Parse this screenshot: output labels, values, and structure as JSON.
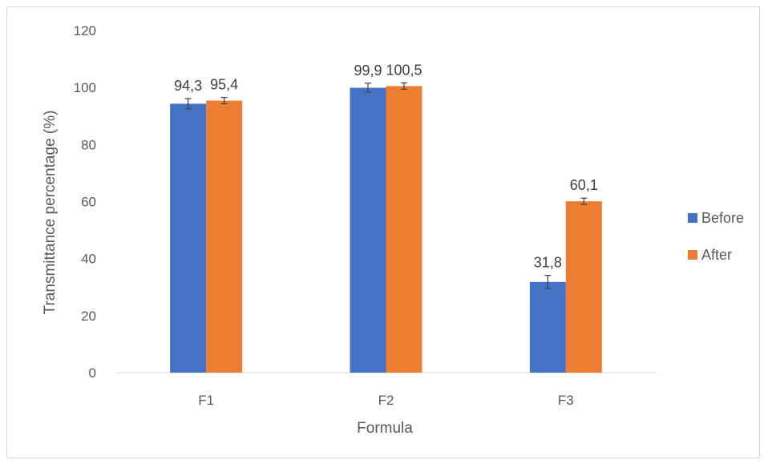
{
  "chart_data": {
    "type": "bar",
    "categories": [
      "F1",
      "F2",
      "F3"
    ],
    "series": [
      {
        "name": "Before",
        "color": "#4472C4",
        "values": [
          94.3,
          99.9,
          31.8
        ],
        "errors": [
          1.8,
          1.6,
          2.3
        ],
        "labels": [
          "94,3",
          "99,9",
          "31,8"
        ]
      },
      {
        "name": "After",
        "color": "#ED7D31",
        "values": [
          95.4,
          100.5,
          60.1
        ],
        "errors": [
          1.1,
          1.1,
          1.1
        ],
        "labels": [
          "95,4",
          "100,5",
          "60,1"
        ]
      }
    ],
    "xlabel": "Formula",
    "ylabel": "Transmittance percentage (%)",
    "ylim": [
      0,
      120
    ],
    "yticks": [
      0,
      20,
      40,
      60,
      80,
      100,
      120
    ],
    "grid": false,
    "legend_position": "right"
  }
}
